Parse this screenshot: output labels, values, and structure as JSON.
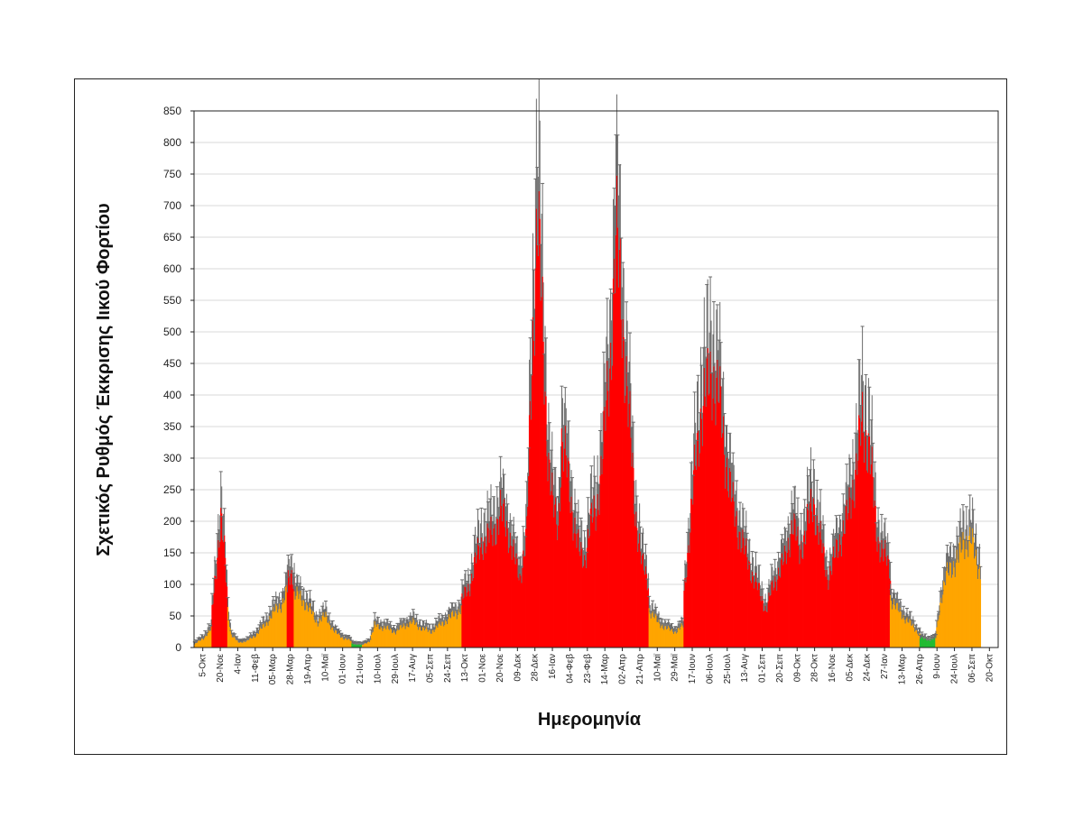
{
  "chart_data": {
    "type": "bar",
    "title": "",
    "xlabel": "Ημερομηνία",
    "ylabel": "Σχετικός Ρυθμός Έκκρισης Ιικού Φορτίου",
    "ylim": [
      0,
      850
    ],
    "yticks": [
      0,
      50,
      100,
      150,
      200,
      250,
      300,
      350,
      400,
      450,
      500,
      550,
      600,
      650,
      700,
      750,
      800,
      850
    ],
    "grid": true,
    "error_bars": true,
    "colors": {
      "high": "#ff0000",
      "medium": "#ffa500",
      "low": "#22bb33",
      "error": "#6b6b6b"
    },
    "x_tick_labels": [
      "5-Οκτ",
      "20-Νοε",
      "4-Ιαν",
      "11-Φεβ",
      "05-Μαρ",
      "28-Μαρ",
      "19-Απρ",
      "10-Μαϊ",
      "01-Ιουν",
      "21-Ιουν",
      "10-Ιουλ",
      "29-Ιουλ",
      "17-Αυγ",
      "05-Σεπ",
      "24-Σεπ",
      "13-Οκτ",
      "01-Νοε",
      "20-Νοε",
      "09-Δεκ",
      "28-Δεκ",
      "16-Ιαν",
      "04-Φεβ",
      "23-Φεβ",
      "14-Μαρ",
      "02-Απρ",
      "21-Απρ",
      "10-Μαϊ",
      "29-Μαϊ",
      "17-Ιουν",
      "06-Ιουλ",
      "25-Ιουλ",
      "13-Αυγ",
      "01-Σεπ",
      "20-Σεπ",
      "09-Οκτ",
      "28-Οκτ",
      "16-Νοε",
      "05-Δεκ",
      "24-Δεκ",
      "27-Ιαν",
      "13-Μαρ",
      "26-Απρ",
      "9-Ιουν",
      "24-Ιουλ",
      "06-Σεπ",
      "20-Οκτ"
    ],
    "segments": [
      {
        "level": "medium",
        "points": [
          [
            0,
            5
          ],
          [
            0.5,
            15
          ],
          [
            1,
            30
          ]
        ]
      },
      {
        "level": "high",
        "points": [
          [
            1,
            60
          ],
          [
            1.3,
            150
          ],
          [
            1.5,
            200
          ],
          [
            1.7,
            150
          ],
          [
            1.9,
            80
          ]
        ]
      },
      {
        "level": "medium",
        "points": [
          [
            1.9,
            60
          ],
          [
            2.1,
            20
          ],
          [
            2.5,
            8
          ],
          [
            3,
            10
          ],
          [
            3.5,
            20
          ],
          [
            4,
            35
          ],
          [
            4.5,
            55
          ],
          [
            5,
            70
          ],
          [
            5.3,
            90
          ]
        ]
      },
      {
        "level": "high",
        "points": [
          [
            5.3,
            100
          ],
          [
            5.5,
            120
          ],
          [
            5.7,
            110
          ]
        ]
      },
      {
        "level": "medium",
        "points": [
          [
            5.7,
            85
          ],
          [
            6.2,
            75
          ],
          [
            6.7,
            55
          ],
          [
            7,
            40
          ],
          [
            7.5,
            50
          ],
          [
            8,
            25
          ],
          [
            8.5,
            15
          ],
          [
            9,
            10
          ]
        ]
      },
      {
        "level": "low",
        "points": [
          [
            9,
            6
          ],
          [
            9.6,
            4
          ]
        ]
      },
      {
        "level": "medium",
        "points": [
          [
            9.6,
            4
          ],
          [
            10,
            10
          ],
          [
            10.3,
            35
          ],
          [
            11,
            30
          ],
          [
            11.5,
            25
          ],
          [
            12,
            35
          ],
          [
            12.5,
            40
          ],
          [
            13,
            30
          ],
          [
            13.5,
            25
          ],
          [
            14,
            35
          ],
          [
            14.5,
            45
          ],
          [
            15,
            55
          ],
          [
            15.3,
            65
          ]
        ]
      },
      {
        "level": "high",
        "points": [
          [
            15.3,
            75
          ],
          [
            15.7,
            95
          ],
          [
            16,
            130
          ],
          [
            16.5,
            170
          ],
          [
            17,
            175
          ],
          [
            17.5,
            215
          ],
          [
            18,
            180
          ],
          [
            18.3,
            140
          ],
          [
            18.6,
            110
          ],
          [
            19,
            180
          ],
          [
            19.3,
            450
          ],
          [
            19.6,
            700
          ],
          [
            19.9,
            500
          ],
          [
            20.2,
            320
          ],
          [
            20.5,
            220
          ],
          [
            20.8,
            190
          ],
          [
            21,
            330
          ],
          [
            21.3,
            280
          ],
          [
            21.7,
            200
          ],
          [
            22,
            150
          ],
          [
            22.3,
            140
          ],
          [
            22.6,
            190
          ],
          [
            23,
            220
          ],
          [
            23.4,
            320
          ],
          [
            23.8,
            470
          ],
          [
            24.1,
            640
          ],
          [
            24.4,
            560
          ],
          [
            24.8,
            380
          ],
          [
            25.2,
            220
          ],
          [
            25.6,
            130
          ],
          [
            26,
            100
          ]
        ]
      },
      {
        "level": "medium",
        "points": [
          [
            26,
            60
          ],
          [
            26.5,
            40
          ],
          [
            27,
            30
          ],
          [
            27.5,
            25
          ],
          [
            28,
            35
          ]
        ]
      },
      {
        "level": "high",
        "points": [
          [
            28,
            85
          ],
          [
            28.3,
            180
          ],
          [
            28.7,
            300
          ],
          [
            29,
            380
          ],
          [
            29.3,
            400
          ],
          [
            29.6,
            440
          ],
          [
            30,
            390
          ],
          [
            30.4,
            300
          ],
          [
            30.8,
            220
          ],
          [
            31.2,
            180
          ],
          [
            31.6,
            140
          ],
          [
            32,
            110
          ],
          [
            32.4,
            80
          ],
          [
            32.7,
            60
          ],
          [
            33,
            90
          ],
          [
            33.4,
            120
          ],
          [
            33.8,
            140
          ],
          [
            34.2,
            200
          ],
          [
            34.6,
            150
          ],
          [
            35,
            190
          ],
          [
            35.4,
            230
          ],
          [
            35.8,
            170
          ],
          [
            36.2,
            110
          ],
          [
            36.6,
            140
          ],
          [
            37,
            180
          ],
          [
            37.4,
            210
          ],
          [
            37.8,
            280
          ],
          [
            38.2,
            350
          ],
          [
            38.6,
            320
          ],
          [
            39,
            180
          ],
          [
            39.4,
            150
          ],
          [
            39.8,
            120
          ]
        ]
      },
      {
        "level": "medium",
        "points": [
          [
            39.8,
            80
          ],
          [
            40.2,
            60
          ],
          [
            40.7,
            45
          ],
          [
            41.2,
            30
          ],
          [
            41.5,
            20
          ]
        ]
      },
      {
        "level": "low",
        "points": [
          [
            41.5,
            15
          ],
          [
            42,
            12
          ],
          [
            42.4,
            14
          ]
        ]
      },
      {
        "level": "medium",
        "points": [
          [
            42.4,
            20
          ],
          [
            42.7,
            80
          ],
          [
            43,
            110
          ],
          [
            43.3,
            130
          ],
          [
            43.7,
            140
          ],
          [
            44,
            170
          ],
          [
            44.4,
            170
          ],
          [
            44.7,
            140
          ],
          [
            44.999,
            120
          ]
        ]
      }
    ]
  }
}
